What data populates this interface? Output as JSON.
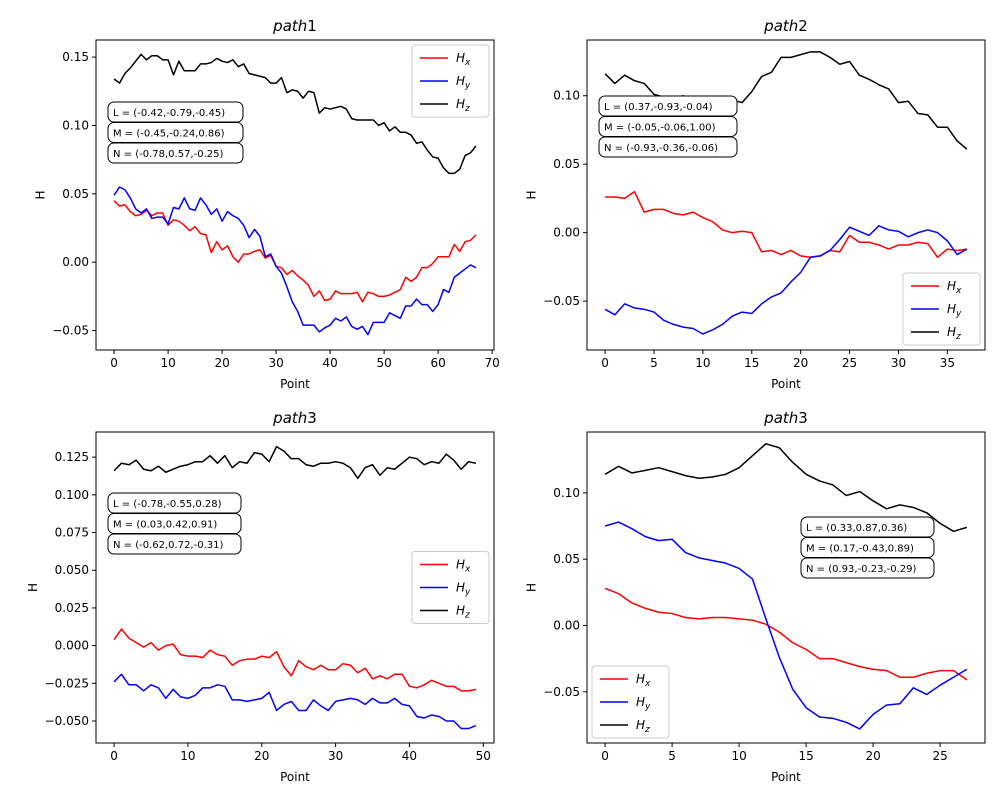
{
  "chart_data": [
    {
      "type": "line",
      "title": "path1",
      "xlabel": "Point",
      "ylabel": "H",
      "xlim": [
        -3.35,
        70.35
      ],
      "ylim": [
        -0.0642,
        0.1625
      ],
      "xticks": [
        0,
        10,
        20,
        30,
        40,
        50,
        60,
        70
      ],
      "yticks": [
        -0.05,
        0.0,
        0.05,
        0.1,
        0.15
      ],
      "ytick_labels": [
        "−0.05",
        "0.00",
        "0.05",
        "0.10",
        "0.15"
      ],
      "legend": "upper-right",
      "annotations": [
        "L = (-0.42,-0.79,-0.45)",
        "M = (-0.45,-0.24,0.86)",
        "N = (-0.78,0.57,-0.25)"
      ],
      "series": [
        {
          "name": "H_x",
          "color": "#ff0000",
          "values": [
            0.045,
            0.041,
            0.042,
            0.037,
            0.034,
            0.035,
            0.038,
            0.034,
            0.036,
            0.036,
            0.027,
            0.031,
            0.03,
            0.027,
            0.023,
            0.026,
            0.021,
            0.02,
            0.007,
            0.015,
            0.009,
            0.012,
            0.004,
            0.0,
            0.006,
            0.006,
            0.008,
            0.009,
            0.003,
            0.005,
            -0.003,
            -0.004,
            -0.009,
            -0.006,
            -0.01,
            -0.013,
            -0.017,
            -0.025,
            -0.021,
            -0.028,
            -0.027,
            -0.021,
            -0.023,
            -0.023,
            -0.023,
            -0.022,
            -0.029,
            -0.022,
            -0.023,
            -0.025,
            -0.025,
            -0.024,
            -0.022,
            -0.02,
            -0.011,
            -0.014,
            -0.011,
            -0.004,
            -0.004,
            -0.001,
            0.004,
            0.004,
            0.004,
            0.013,
            0.008,
            0.015,
            0.016,
            0.02
          ]
        },
        {
          "name": "H_y",
          "color": "#0000ff",
          "values": [
            0.049,
            0.055,
            0.053,
            0.047,
            0.039,
            0.036,
            0.039,
            0.032,
            0.033,
            0.033,
            0.028,
            0.04,
            0.039,
            0.047,
            0.039,
            0.038,
            0.047,
            0.042,
            0.035,
            0.039,
            0.03,
            0.037,
            0.034,
            0.032,
            0.027,
            0.018,
            0.024,
            0.019,
            0.004,
            0.006,
            -0.003,
            -0.008,
            -0.018,
            -0.029,
            -0.036,
            -0.046,
            -0.046,
            -0.046,
            -0.051,
            -0.048,
            -0.046,
            -0.041,
            -0.043,
            -0.04,
            -0.047,
            -0.049,
            -0.047,
            -0.053,
            -0.044,
            -0.044,
            -0.044,
            -0.037,
            -0.039,
            -0.041,
            -0.032,
            -0.032,
            -0.027,
            -0.031,
            -0.031,
            -0.036,
            -0.031,
            -0.02,
            -0.022,
            -0.011,
            -0.008,
            -0.005,
            -0.002,
            -0.004
          ]
        },
        {
          "name": "H_z",
          "color": "#000000",
          "values": [
            0.134,
            0.131,
            0.138,
            0.142,
            0.147,
            0.152,
            0.148,
            0.151,
            0.151,
            0.148,
            0.148,
            0.137,
            0.147,
            0.14,
            0.14,
            0.14,
            0.145,
            0.145,
            0.146,
            0.149,
            0.147,
            0.146,
            0.148,
            0.143,
            0.145,
            0.138,
            0.137,
            0.136,
            0.135,
            0.131,
            0.131,
            0.135,
            0.124,
            0.126,
            0.125,
            0.12,
            0.125,
            0.124,
            0.109,
            0.113,
            0.112,
            0.113,
            0.114,
            0.112,
            0.105,
            0.104,
            0.104,
            0.104,
            0.104,
            0.1,
            0.102,
            0.096,
            0.099,
            0.095,
            0.095,
            0.093,
            0.087,
            0.088,
            0.082,
            0.077,
            0.076,
            0.069,
            0.065,
            0.065,
            0.068,
            0.078,
            0.08,
            0.085
          ]
        }
      ]
    },
    {
      "type": "line",
      "title": "path2",
      "xlabel": "Point",
      "ylabel": "H",
      "xlim": [
        -1.85,
        38.85
      ],
      "ylim": [
        -0.0857,
        0.1407
      ],
      "xticks": [
        0,
        5,
        10,
        15,
        20,
        25,
        30,
        35
      ],
      "yticks": [
        -0.05,
        0.0,
        0.05,
        0.1
      ],
      "ytick_labels": [
        "−0.05",
        "0.00",
        "0.05",
        "0.10"
      ],
      "legend": "lower-right",
      "annotations": [
        "L = (0.37,-0.93,-0.04)",
        "M = (-0.05,-0.06,1.00)",
        "N = (-0.93,-0.36,-0.06)"
      ],
      "series": [
        {
          "name": "H_x",
          "color": "#ff0000",
          "values": [
            0.026,
            0.026,
            0.025,
            0.03,
            0.015,
            0.017,
            0.017,
            0.014,
            0.013,
            0.015,
            0.011,
            0.008,
            0.002,
            0.0,
            0.001,
            0.0,
            -0.014,
            -0.013,
            -0.016,
            -0.013,
            -0.017,
            -0.018,
            -0.017,
            -0.013,
            -0.014,
            -0.002,
            -0.007,
            -0.007,
            -0.009,
            -0.012,
            -0.009,
            -0.009,
            -0.007,
            -0.008,
            -0.018,
            -0.012,
            -0.013,
            -0.012
          ]
        },
        {
          "name": "H_y",
          "color": "#0000ff",
          "values": [
            -0.056,
            -0.06,
            -0.052,
            -0.055,
            -0.056,
            -0.058,
            -0.064,
            -0.067,
            -0.069,
            -0.07,
            -0.074,
            -0.071,
            -0.067,
            -0.061,
            -0.058,
            -0.059,
            -0.052,
            -0.047,
            -0.044,
            -0.036,
            -0.029,
            -0.018,
            -0.017,
            -0.013,
            -0.005,
            0.004,
            0.001,
            -0.002,
            0.005,
            0.002,
            0.001,
            -0.003,
            0.0,
            0.002,
            0.0,
            -0.006,
            -0.016,
            -0.012
          ]
        },
        {
          "name": "H_z",
          "color": "#000000",
          "values": [
            0.116,
            0.109,
            0.115,
            0.111,
            0.109,
            0.101,
            0.099,
            0.098,
            0.1,
            0.09,
            0.09,
            0.086,
            0.09,
            0.097,
            0.095,
            0.103,
            0.114,
            0.117,
            0.128,
            0.128,
            0.13,
            0.132,
            0.132,
            0.128,
            0.123,
            0.125,
            0.115,
            0.112,
            0.108,
            0.105,
            0.095,
            0.096,
            0.087,
            0.086,
            0.077,
            0.077,
            0.067,
            0.061
          ]
        }
      ]
    },
    {
      "type": "line",
      "title": "path3",
      "xlabel": "Point",
      "ylabel": "H",
      "xlim": [
        -2.45,
        51.45
      ],
      "ylim": [
        -0.0646,
        0.1417
      ],
      "xticks": [
        0,
        10,
        20,
        30,
        40,
        50
      ],
      "yticks": [
        -0.05,
        -0.025,
        0.0,
        0.025,
        0.05,
        0.075,
        0.1,
        0.125
      ],
      "ytick_labels": [
        "−0.050",
        "−0.025",
        "0.000",
        "0.025",
        "0.050",
        "0.075",
        "0.100",
        "0.125"
      ],
      "legend": "center-right",
      "annotations": [
        "L = (-0.78,-0.55,0.28)",
        "M = (0.03,0.42,0.91)",
        "N = (-0.62,0.72,-0.31)"
      ],
      "series": [
        {
          "name": "H_x",
          "color": "#ff0000",
          "values": [
            0.004,
            0.011,
            0.005,
            0.002,
            -0.001,
            0.002,
            -0.003,
            0.0,
            0.001,
            -0.006,
            -0.007,
            -0.007,
            -0.008,
            -0.003,
            -0.006,
            -0.007,
            -0.013,
            -0.01,
            -0.009,
            -0.009,
            -0.007,
            -0.008,
            -0.004,
            -0.014,
            -0.02,
            -0.01,
            -0.014,
            -0.016,
            -0.013,
            -0.016,
            -0.016,
            -0.012,
            -0.013,
            -0.018,
            -0.015,
            -0.022,
            -0.02,
            -0.022,
            -0.019,
            -0.019,
            -0.027,
            -0.028,
            -0.026,
            -0.023,
            -0.025,
            -0.027,
            -0.027,
            -0.03,
            -0.03,
            -0.029
          ]
        },
        {
          "name": "H_y",
          "color": "#0000ff",
          "values": [
            -0.024,
            -0.019,
            -0.026,
            -0.026,
            -0.03,
            -0.026,
            -0.028,
            -0.035,
            -0.029,
            -0.034,
            -0.035,
            -0.033,
            -0.028,
            -0.028,
            -0.026,
            -0.027,
            -0.036,
            -0.036,
            -0.037,
            -0.036,
            -0.035,
            -0.031,
            -0.043,
            -0.039,
            -0.037,
            -0.043,
            -0.043,
            -0.036,
            -0.04,
            -0.043,
            -0.037,
            -0.036,
            -0.035,
            -0.036,
            -0.039,
            -0.035,
            -0.038,
            -0.038,
            -0.035,
            -0.039,
            -0.04,
            -0.047,
            -0.048,
            -0.046,
            -0.047,
            -0.05,
            -0.05,
            -0.055,
            -0.055,
            -0.053
          ]
        },
        {
          "name": "H_z",
          "color": "#000000",
          "values": [
            0.116,
            0.121,
            0.12,
            0.123,
            0.117,
            0.116,
            0.119,
            0.115,
            0.117,
            0.119,
            0.12,
            0.122,
            0.122,
            0.126,
            0.121,
            0.126,
            0.118,
            0.122,
            0.121,
            0.128,
            0.127,
            0.122,
            0.132,
            0.129,
            0.124,
            0.124,
            0.12,
            0.119,
            0.121,
            0.121,
            0.122,
            0.121,
            0.118,
            0.111,
            0.118,
            0.12,
            0.113,
            0.118,
            0.117,
            0.121,
            0.125,
            0.124,
            0.12,
            0.122,
            0.121,
            0.127,
            0.123,
            0.117,
            0.122,
            0.121
          ]
        }
      ]
    },
    {
      "type": "line",
      "title": "path3",
      "xlabel": "Point",
      "ylabel": "H",
      "xlim": [
        -1.35,
        28.35
      ],
      "ylim": [
        -0.0886,
        0.1459
      ],
      "xticks": [
        0,
        5,
        10,
        15,
        20,
        25
      ],
      "yticks": [
        -0.05,
        0.0,
        0.05,
        0.1
      ],
      "ytick_labels": [
        "−0.05",
        "0.00",
        "0.05",
        "0.10"
      ],
      "legend": "lower-left",
      "annotations": [
        "L = (0.33,0.87,0.36)",
        "M = (0.17,-0.43,0.89)",
        "N = (0.93,-0.23,-0.29)"
      ],
      "series": [
        {
          "name": "H_x",
          "color": "#ff0000",
          "values": [
            0.028,
            0.024,
            0.017,
            0.013,
            0.01,
            0.009,
            0.006,
            0.005,
            0.006,
            0.006,
            0.005,
            0.004,
            0.001,
            -0.005,
            -0.013,
            -0.018,
            -0.025,
            -0.025,
            -0.028,
            -0.031,
            -0.033,
            -0.034,
            -0.039,
            -0.039,
            -0.036,
            -0.034,
            -0.034,
            -0.041
          ]
        },
        {
          "name": "H_y",
          "color": "#0000ff",
          "values": [
            0.075,
            0.078,
            0.073,
            0.067,
            0.064,
            0.065,
            0.055,
            0.051,
            0.049,
            0.047,
            0.043,
            0.035,
            0.005,
            -0.024,
            -0.048,
            -0.062,
            -0.069,
            -0.07,
            -0.073,
            -0.078,
            -0.067,
            -0.06,
            -0.059,
            -0.047,
            -0.052,
            -0.045,
            -0.039,
            -0.033
          ]
        },
        {
          "name": "H_z",
          "color": "#000000",
          "values": [
            0.114,
            0.12,
            0.115,
            0.117,
            0.119,
            0.116,
            0.113,
            0.111,
            0.112,
            0.114,
            0.119,
            0.128,
            0.137,
            0.134,
            0.123,
            0.114,
            0.109,
            0.106,
            0.098,
            0.101,
            0.094,
            0.088,
            0.091,
            0.089,
            0.085,
            0.077,
            0.071,
            0.074
          ]
        }
      ]
    }
  ]
}
